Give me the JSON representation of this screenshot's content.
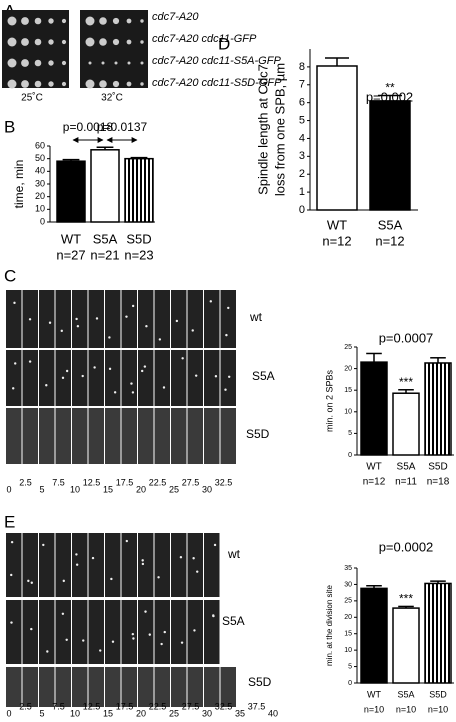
{
  "panel_labels": [
    "A",
    "B",
    "C",
    "D",
    "E"
  ],
  "panel_a": {
    "strains": [
      "cdc7-A20",
      "cdc7-A20 cdc11-GFP",
      "cdc7-A20 cdc11-S5A-GFP",
      "cdc7-A20 cdc11-S5D-GFP"
    ],
    "temperatures": [
      "25˚C",
      "32˚C"
    ]
  },
  "panel_c": {
    "rows": [
      "wt",
      "S5A",
      "S5D"
    ],
    "times": [
      0,
      2.5,
      5,
      7.5,
      10,
      12.5,
      15,
      17.5,
      20,
      22.5,
      25,
      27.5,
      30,
      32.5
    ]
  },
  "panel_e": {
    "rows": [
      "wt",
      "S5A",
      "S5D"
    ],
    "times": [
      0,
      2.5,
      5,
      7.5,
      10,
      12.5,
      15,
      17.5,
      20,
      22.5,
      25,
      27.5,
      30,
      32.5,
      35,
      37.5,
      40
    ]
  },
  "chart_data": [
    {
      "type": "bar",
      "ylabel": "time, min",
      "categories": [
        "WT",
        "S5A",
        "S5D"
      ],
      "n_labels": [
        "n=27",
        "n=21",
        "n=23"
      ],
      "values": [
        48,
        57,
        50
      ],
      "errors": [
        1.2,
        2,
        0.8
      ],
      "colors": [
        "#000000",
        "#ffffff",
        "#ffffff"
      ],
      "hatch": [
        "none",
        "none",
        "vertical"
      ],
      "ylim": [
        0,
        60
      ],
      "yticks": [
        0,
        10,
        20,
        30,
        40,
        50,
        60
      ],
      "comparisons": [
        {
          "label": "p=0.0018",
          "between": [
            0,
            1
          ]
        },
        {
          "label": "p=0.0137",
          "between": [
            1,
            2
          ]
        }
      ]
    },
    {
      "type": "bar",
      "ylabel": [
        "Spindle length at Cdc7",
        "loss from one SPB, µm"
      ],
      "categories": [
        "WT",
        "S5A"
      ],
      "n_labels": [
        "n=12",
        "n=12"
      ],
      "values": [
        8.05,
        6.1
      ],
      "errors": [
        0.45,
        0.3
      ],
      "colors": [
        "#ffffff",
        "#000000"
      ],
      "hatch": [
        "none",
        "none"
      ],
      "ylim": [
        0,
        9
      ],
      "yticks": [
        0,
        1,
        2,
        3,
        4,
        5,
        6,
        7,
        8
      ],
      "pvalue": "p=0.002",
      "star_labels": [
        {
          "index": 1,
          "label": "**"
        }
      ]
    },
    {
      "type": "bar",
      "ylabel": "min. on 2 SPBs",
      "categories": [
        "WT",
        "S5A",
        "S5D"
      ],
      "n_labels": [
        "n=12",
        "n=11",
        "n=18"
      ],
      "values": [
        21.5,
        14.3,
        21.3
      ],
      "errors": [
        2,
        0.8,
        1.2
      ],
      "colors": [
        "#000000",
        "#ffffff",
        "#ffffff"
      ],
      "hatch": [
        "none",
        "none",
        "vertical"
      ],
      "ylim": [
        0,
        25
      ],
      "yticks": [
        0,
        5,
        10,
        15,
        20,
        25
      ],
      "pvalue": "p=0.0007",
      "star_labels": [
        {
          "index": 1,
          "label": "***"
        }
      ]
    },
    {
      "type": "bar",
      "ylabel": "min. at the division site",
      "categories": [
        "WT",
        "S5A",
        "S5D"
      ],
      "n_labels": [
        "n=10",
        "n=10",
        "n=10"
      ],
      "values": [
        28.8,
        22.8,
        30.3
      ],
      "errors": [
        0.8,
        0.5,
        0.7
      ],
      "colors": [
        "#000000",
        "#ffffff",
        "#ffffff"
      ],
      "hatch": [
        "none",
        "none",
        "vertical"
      ],
      "ylim": [
        0,
        35
      ],
      "yticks": [
        0,
        5,
        10,
        15,
        20,
        25,
        30,
        35
      ],
      "pvalue": "p=0.0002",
      "star_labels": [
        {
          "index": 1,
          "label": "***"
        }
      ]
    }
  ]
}
